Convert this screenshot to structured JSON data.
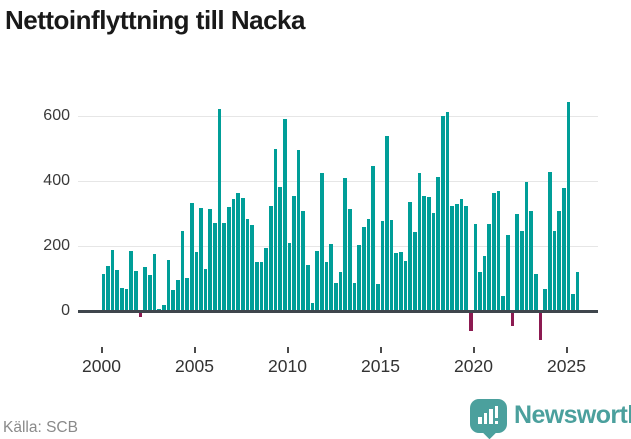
{
  "header": {
    "title": "Nettoinflyttning till Nacka"
  },
  "chart_data": {
    "type": "bar",
    "title": "Nettoinflyttning till Nacka",
    "period": "quarterly",
    "start": "2000-Q1",
    "end": "2025-Q3",
    "values": [
      115,
      138,
      188,
      125,
      72,
      68,
      184,
      123,
      -18,
      135,
      111,
      175,
      5,
      20,
      157,
      64,
      94,
      246,
      103,
      333,
      183,
      318,
      128,
      315,
      272,
      623,
      272,
      320,
      346,
      364,
      349,
      284,
      264,
      152,
      152,
      195,
      323,
      500,
      383,
      592,
      210,
      354,
      494,
      308,
      141,
      24,
      184,
      425,
      150,
      205,
      85,
      120,
      410,
      313,
      87,
      202,
      257,
      282,
      446,
      82,
      277,
      537,
      280,
      180,
      182,
      154,
      335,
      243,
      426,
      354,
      350,
      302,
      412,
      600,
      612,
      323,
      330,
      346,
      323,
      -62,
      267,
      120,
      169,
      269,
      364,
      369,
      46,
      233,
      -46,
      298,
      246,
      397,
      308,
      115,
      -90,
      67,
      428,
      246,
      308,
      380,
      643,
      51,
      120
    ],
    "y_ticks": [
      0,
      200,
      400,
      600
    ],
    "x_tick_labels": [
      "2000",
      "2005",
      "2010",
      "2015",
      "2020",
      "2025"
    ],
    "ylim": [
      -100,
      660
    ],
    "grid": "horizontal",
    "legend": "none",
    "colors": {
      "positive": "#009e98",
      "negative": "#8c1a51",
      "axis": "#3f464d"
    }
  },
  "footer": {
    "source": "Källa: SCB",
    "brand": "Newsworthy",
    "brand_color": "#4ba09d"
  }
}
